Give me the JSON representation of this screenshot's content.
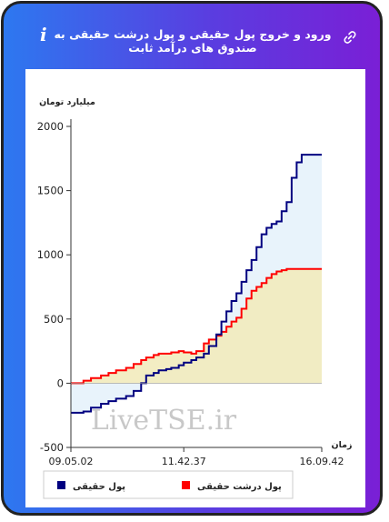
{
  "header": {
    "title": "ورود و خروج پول حقیقی و پول درشت حقیقی به صندوق های درآمد ثابت",
    "info_glyph": "i",
    "icons": [
      "info-icon",
      "link-icon"
    ]
  },
  "watermark": "LiveTSE.ir",
  "colors": {
    "real_money": "#000080",
    "big_real_money": "#ff0000",
    "fill_real": "#e8f3fb",
    "fill_big": "#f2ebbd"
  },
  "chart_data": {
    "type": "line",
    "ylabel": "میلیارد تومان",
    "xlabel": "زمان",
    "ylim": [
      -500,
      2000
    ],
    "yticks": [
      2000,
      1500,
      1000,
      500,
      0,
      -500
    ],
    "xlim": [
      0,
      100
    ],
    "xtick_labels": [
      {
        "pos": 0,
        "label": "09.05.02"
      },
      {
        "pos": 45,
        "label": "11.42.37"
      },
      {
        "pos": 100,
        "label": "16.09.42"
      }
    ],
    "grid": false,
    "legend_position": "bottom",
    "series": [
      {
        "name": "پول حقیقی",
        "color": "#000080",
        "x": [
          0,
          5,
          8,
          12,
          15,
          18,
          22,
          25,
          28,
          30,
          33,
          35,
          38,
          40,
          43,
          45,
          48,
          50,
          53,
          55,
          58,
          60,
          62,
          64,
          66,
          68,
          70,
          72,
          74,
          76,
          78,
          80,
          82,
          84,
          86,
          88,
          90,
          92,
          95,
          100
        ],
        "values": [
          -230,
          -220,
          -190,
          -160,
          -140,
          -120,
          -100,
          -60,
          0,
          60,
          80,
          100,
          110,
          120,
          140,
          160,
          180,
          200,
          230,
          290,
          380,
          480,
          560,
          640,
          700,
          790,
          880,
          960,
          1060,
          1160,
          1210,
          1240,
          1260,
          1340,
          1410,
          1600,
          1720,
          1780,
          1780,
          1780
        ]
      },
      {
        "name": "پول درشت حقیقی",
        "color": "#ff0000",
        "x": [
          0,
          5,
          8,
          12,
          15,
          18,
          22,
          25,
          28,
          30,
          33,
          35,
          38,
          40,
          43,
          45,
          48,
          50,
          53,
          55,
          58,
          60,
          62,
          64,
          66,
          68,
          70,
          72,
          74,
          76,
          78,
          80,
          82,
          84,
          86,
          88,
          90,
          92,
          95,
          100
        ],
        "values": [
          0,
          20,
          40,
          60,
          80,
          100,
          120,
          150,
          180,
          200,
          220,
          230,
          230,
          240,
          250,
          240,
          230,
          250,
          310,
          340,
          370,
          400,
          440,
          480,
          510,
          580,
          660,
          720,
          750,
          780,
          820,
          850,
          870,
          880,
          890,
          890,
          890,
          890,
          890,
          890
        ]
      }
    ]
  }
}
